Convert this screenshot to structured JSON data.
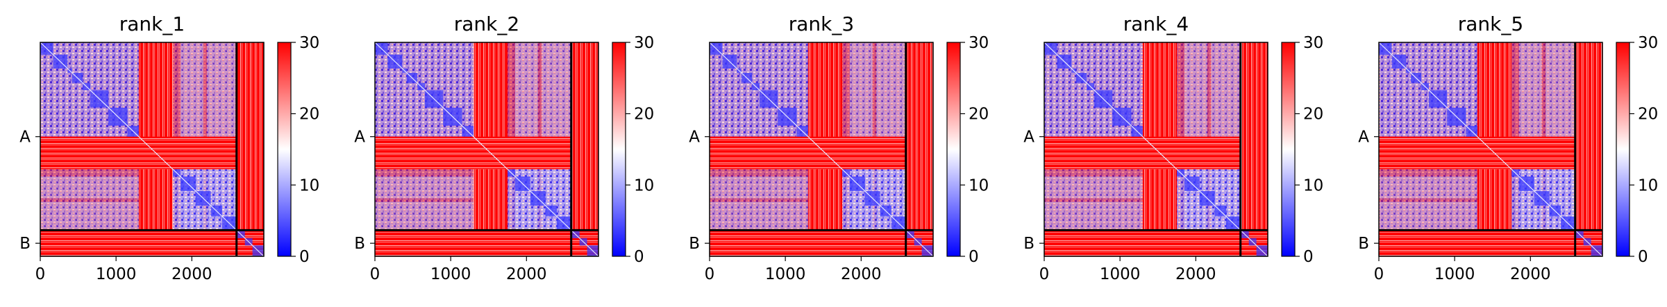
{
  "figure": {
    "chain_labels": [
      "A",
      "B"
    ],
    "colormap": {
      "low": "#0000ff",
      "mid": "#ffffff",
      "high": "#ff0000"
    },
    "background": "#ffffff"
  },
  "chart_data": [
    {
      "type": "heatmap",
      "title": "rank_1",
      "xlabel": "",
      "ylabel": "",
      "xlim": [
        0,
        2950
      ],
      "xticks": [
        0,
        1000,
        2000
      ],
      "ytick_labels": [
        {
          "label": "A",
          "at": 1300
        },
        {
          "label": "B",
          "at": 2770
        }
      ],
      "chain_boundary": 2590,
      "colorbar": {
        "vmin": 0,
        "vmax": 30,
        "ticks": [
          0,
          10,
          20,
          30
        ]
      },
      "blue_blocks": [
        [
          0,
          170
        ],
        [
          170,
          360
        ],
        [
          360,
          420
        ],
        [
          420,
          560
        ],
        [
          560,
          660
        ],
        [
          660,
          900
        ],
        [
          900,
          1150
        ],
        [
          1150,
          1300
        ],
        [
          1750,
          1850
        ],
        [
          1850,
          2050
        ],
        [
          2050,
          2250
        ],
        [
          2250,
          2400
        ],
        [
          2400,
          2590
        ],
        [
          2590,
          2700
        ],
        [
          2700,
          2800
        ],
        [
          2800,
          2950
        ]
      ],
      "red_bands": [
        [
          1300,
          1750
        ],
        [
          2590,
          2950
        ]
      ],
      "light_bands": [
        [
          1850,
          2150
        ],
        [
          2200,
          2580
        ]
      ]
    },
    {
      "type": "heatmap",
      "title": "rank_2",
      "xlabel": "",
      "ylabel": "",
      "xlim": [
        0,
        2950
      ],
      "xticks": [
        0,
        1000,
        2000
      ],
      "ytick_labels": [
        {
          "label": "A",
          "at": 1300
        },
        {
          "label": "B",
          "at": 2770
        }
      ],
      "chain_boundary": 2590,
      "colorbar": {
        "vmin": 0,
        "vmax": 30,
        "ticks": [
          0,
          10,
          20,
          30
        ]
      },
      "blue_blocks": [
        [
          0,
          170
        ],
        [
          170,
          360
        ],
        [
          360,
          420
        ],
        [
          420,
          560
        ],
        [
          560,
          660
        ],
        [
          660,
          900
        ],
        [
          900,
          1150
        ],
        [
          1150,
          1300
        ],
        [
          1750,
          1850
        ],
        [
          1850,
          2050
        ],
        [
          2050,
          2250
        ],
        [
          2250,
          2400
        ],
        [
          2400,
          2590
        ],
        [
          2590,
          2700
        ],
        [
          2700,
          2800
        ],
        [
          2800,
          2950
        ]
      ],
      "red_bands": [
        [
          1300,
          1750
        ],
        [
          2590,
          2950
        ]
      ],
      "light_bands": [
        [
          1850,
          2150
        ],
        [
          2200,
          2580
        ]
      ]
    },
    {
      "type": "heatmap",
      "title": "rank_3",
      "xlabel": "",
      "ylabel": "",
      "xlim": [
        0,
        2950
      ],
      "xticks": [
        0,
        1000,
        2000
      ],
      "ytick_labels": [
        {
          "label": "A",
          "at": 1300
        },
        {
          "label": "B",
          "at": 2770
        }
      ],
      "chain_boundary": 2590,
      "colorbar": {
        "vmin": 0,
        "vmax": 30,
        "ticks": [
          0,
          10,
          20,
          30
        ]
      },
      "blue_blocks": [
        [
          0,
          170
        ],
        [
          170,
          360
        ],
        [
          360,
          420
        ],
        [
          420,
          560
        ],
        [
          560,
          660
        ],
        [
          660,
          900
        ],
        [
          900,
          1150
        ],
        [
          1150,
          1300
        ],
        [
          1750,
          1850
        ],
        [
          1850,
          2050
        ],
        [
          2050,
          2250
        ],
        [
          2250,
          2400
        ],
        [
          2400,
          2590
        ],
        [
          2590,
          2700
        ],
        [
          2700,
          2800
        ],
        [
          2800,
          2950
        ]
      ],
      "red_bands": [
        [
          1300,
          1750
        ],
        [
          2590,
          2950
        ]
      ],
      "light_bands": [
        [
          1850,
          2150
        ],
        [
          2200,
          2580
        ]
      ]
    },
    {
      "type": "heatmap",
      "title": "rank_4",
      "xlabel": "",
      "ylabel": "",
      "xlim": [
        0,
        2950
      ],
      "xticks": [
        0,
        1000,
        2000
      ],
      "ytick_labels": [
        {
          "label": "A",
          "at": 1300
        },
        {
          "label": "B",
          "at": 2770
        }
      ],
      "chain_boundary": 2590,
      "colorbar": {
        "vmin": 0,
        "vmax": 30,
        "ticks": [
          0,
          10,
          20,
          30
        ]
      },
      "blue_blocks": [
        [
          0,
          170
        ],
        [
          170,
          360
        ],
        [
          360,
          420
        ],
        [
          420,
          560
        ],
        [
          560,
          660
        ],
        [
          660,
          900
        ],
        [
          900,
          1150
        ],
        [
          1150,
          1300
        ],
        [
          1750,
          1850
        ],
        [
          1850,
          2050
        ],
        [
          2050,
          2250
        ],
        [
          2250,
          2400
        ],
        [
          2400,
          2590
        ],
        [
          2590,
          2700
        ],
        [
          2700,
          2800
        ],
        [
          2800,
          2950
        ]
      ],
      "red_bands": [
        [
          1300,
          1750
        ],
        [
          2590,
          2950
        ]
      ],
      "light_bands": [
        [
          1850,
          2150
        ],
        [
          2200,
          2580
        ]
      ]
    },
    {
      "type": "heatmap",
      "title": "rank_5",
      "xlabel": "",
      "ylabel": "",
      "xlim": [
        0,
        2950
      ],
      "xticks": [
        0,
        1000,
        2000
      ],
      "ytick_labels": [
        {
          "label": "A",
          "at": 1300
        },
        {
          "label": "B",
          "at": 2770
        }
      ],
      "chain_boundary": 2590,
      "colorbar": {
        "vmin": 0,
        "vmax": 30,
        "ticks": [
          0,
          10,
          20,
          30
        ]
      },
      "blue_blocks": [
        [
          0,
          170
        ],
        [
          170,
          360
        ],
        [
          360,
          420
        ],
        [
          420,
          560
        ],
        [
          560,
          660
        ],
        [
          660,
          900
        ],
        [
          900,
          1150
        ],
        [
          1150,
          1300
        ],
        [
          1750,
          1850
        ],
        [
          1850,
          2050
        ],
        [
          2050,
          2250
        ],
        [
          2250,
          2400
        ],
        [
          2400,
          2590
        ],
        [
          2590,
          2700
        ],
        [
          2700,
          2800
        ],
        [
          2800,
          2950
        ]
      ],
      "red_bands": [
        [
          1300,
          1750
        ],
        [
          2590,
          2950
        ]
      ],
      "light_bands": [
        [
          1850,
          2150
        ],
        [
          2200,
          2580
        ]
      ]
    }
  ]
}
